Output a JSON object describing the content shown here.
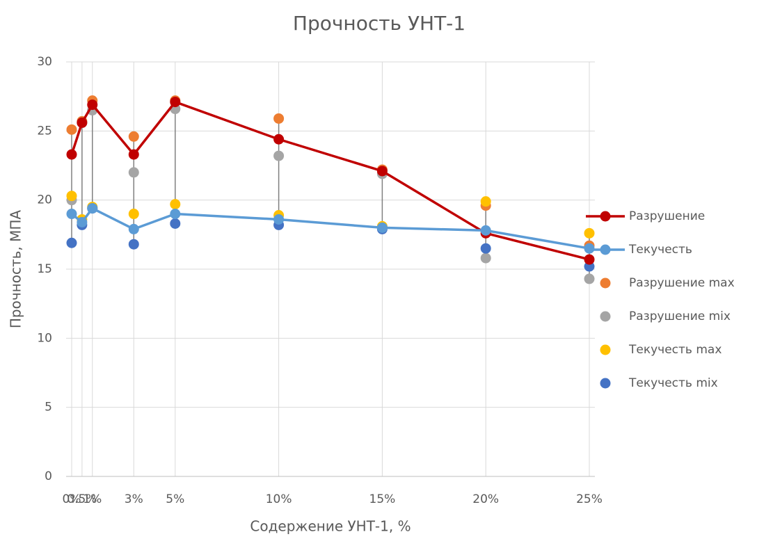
{
  "chart_data": {
    "type": "line",
    "title": "Прочность УНТ-1",
    "x_label": "Содержение УНТ-1, %",
    "y_label": "Прочность, МПА",
    "x": [
      0,
      0.5,
      1,
      3,
      5,
      10,
      15,
      20,
      25
    ],
    "xlim": [
      0,
      25
    ],
    "xticks": [
      {
        "value": 0,
        "label": "0%"
      },
      {
        "value": 0.5,
        "label": "0.5%"
      },
      {
        "value": 1,
        "label": "1%"
      },
      {
        "value": 3,
        "label": "3%"
      },
      {
        "value": 5,
        "label": "5%"
      },
      {
        "value": 10,
        "label": "10%"
      },
      {
        "value": 15,
        "label": "15%"
      },
      {
        "value": 20,
        "label": "20%"
      },
      {
        "value": 25,
        "label": "25%"
      }
    ],
    "ylim": [
      0,
      30
    ],
    "yticks": [
      0,
      5,
      10,
      15,
      20,
      25,
      30
    ],
    "grid": true,
    "high_low_lines": true,
    "legend": "right",
    "series": [
      {
        "name": "Разрушение",
        "color": "#c00000",
        "style": "line",
        "values": [
          23.3,
          25.6,
          26.9,
          23.3,
          27.1,
          24.4,
          22.1,
          17.6,
          15.7
        ]
      },
      {
        "name": "Текучесть",
        "color": "#5b9bd5",
        "style": "line",
        "values": [
          19.0,
          18.4,
          19.4,
          17.9,
          19.0,
          18.6,
          18.0,
          17.8,
          16.5
        ]
      },
      {
        "name": "Разрушение max",
        "color": "#ed7d31",
        "style": "markers",
        "values": [
          25.1,
          25.7,
          27.2,
          24.6,
          27.2,
          25.9,
          22.2,
          19.6,
          16.7
        ]
      },
      {
        "name": "Разрушение mix",
        "color": "#a5a5a5",
        "style": "markers",
        "values": [
          20.0,
          25.6,
          26.5,
          22.0,
          26.6,
          23.2,
          21.9,
          15.8,
          14.3
        ]
      },
      {
        "name": "Текучесть max",
        "color": "#ffc000",
        "style": "markers",
        "values": [
          20.3,
          18.6,
          19.5,
          19.0,
          19.7,
          18.9,
          18.1,
          19.9,
          17.6
        ]
      },
      {
        "name": "Текучесть mix",
        "color": "#4472c4",
        "style": "markers",
        "values": [
          16.9,
          18.2,
          19.4,
          16.8,
          18.3,
          18.2,
          17.9,
          16.5,
          15.2
        ]
      }
    ]
  }
}
